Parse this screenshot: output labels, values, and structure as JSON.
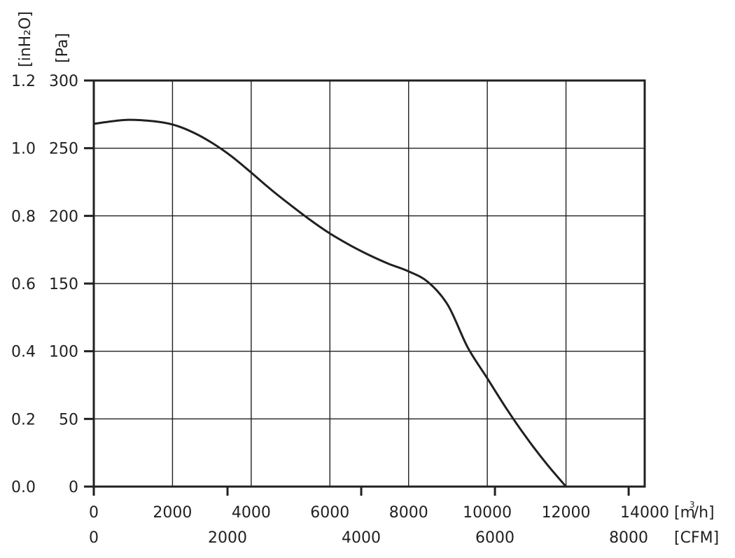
{
  "chart_data": {
    "type": "line",
    "title": "",
    "plot_area": {
      "frame_color": "#231f20",
      "grid": true,
      "grid_color": "#231f20",
      "curve_color": "#231f20"
    },
    "axes": {
      "y_left_outer": {
        "unit": "[inH₂O]",
        "ticks": [
          "1.2",
          "1.0",
          "0.8",
          "0.6",
          "0.4",
          "0.2",
          "0.0"
        ],
        "range": [
          0.0,
          1.2
        ]
      },
      "y_left_inner": {
        "unit": "[Pa]",
        "ticks": [
          "300",
          "250",
          "200",
          "150",
          "100",
          "50",
          "0"
        ],
        "range": [
          0,
          300
        ]
      },
      "x_bottom_primary": {
        "unit_base": "[m",
        "unit_sup": "3",
        "unit_tail": "/h]",
        "ticks": [
          "0",
          "2000",
          "4000",
          "6000",
          "8000",
          "10000",
          "12000",
          "14000"
        ],
        "range": [
          0,
          14000
        ]
      },
      "x_bottom_secondary": {
        "unit": "[CFM]",
        "ticks": [
          "0",
          "2000",
          "4000",
          "6000",
          "8000"
        ],
        "range": [
          0,
          8240
        ]
      }
    },
    "series": [
      {
        "x_unit": "m3/h",
        "y_unit": "Pa",
        "x": [
          0,
          500,
          900,
          1500,
          2000,
          2500,
          3000,
          3500,
          4000,
          4500,
          5000,
          5500,
          6000,
          6500,
          7000,
          7500,
          8000,
          8500,
          9000,
          9500,
          10000,
          10500,
          11000,
          11500,
          12000
        ],
        "y": [
          268,
          270,
          271,
          270,
          267.5,
          262,
          254,
          244,
          232,
          219.5,
          208,
          197,
          187,
          178.5,
          171,
          164.5,
          159,
          151,
          134,
          103,
          80,
          57,
          36,
          17,
          0
        ]
      }
    ]
  }
}
